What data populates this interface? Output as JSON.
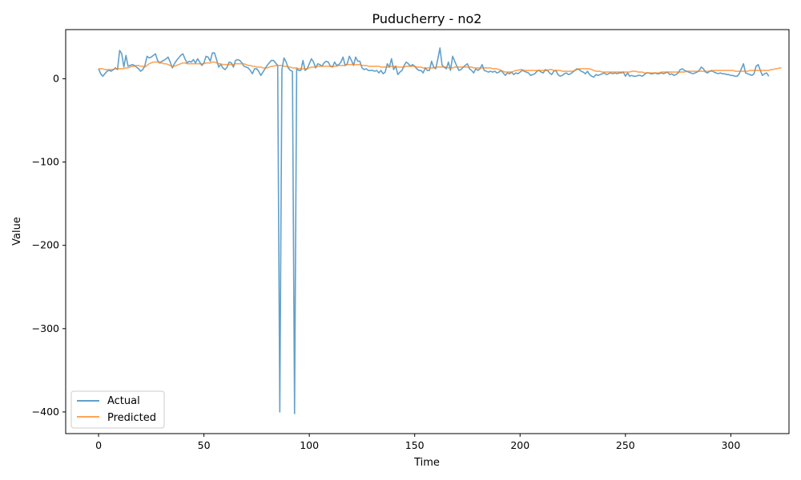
{
  "chart_data": {
    "type": "line",
    "title": "Puducherry - no2",
    "xlabel": "Time",
    "ylabel": "Value",
    "xlim": [
      -15.6,
      327.6
    ],
    "ylim": [
      -426,
      59
    ],
    "xticks": [
      0,
      50,
      100,
      150,
      200,
      250,
      300
    ],
    "yticks": [
      0,
      -100,
      -200,
      -300,
      -400
    ],
    "legend": {
      "position": "lower-left"
    },
    "grid": false,
    "series": [
      {
        "name": "Actual",
        "color": "#1f77b4",
        "values": [
          12,
          6,
          3,
          6,
          9,
          10,
          9,
          11,
          13,
          11,
          34,
          30,
          14,
          28,
          15,
          16,
          17,
          16,
          14,
          12,
          9,
          11,
          16,
          27,
          25,
          26,
          28,
          30,
          22,
          19,
          21,
          22,
          24,
          26,
          20,
          13,
          18,
          22,
          25,
          28,
          30,
          24,
          19,
          21,
          20,
          23,
          19,
          24,
          20,
          16,
          19,
          27,
          26,
          21,
          31,
          31,
          23,
          14,
          17,
          13,
          11,
          14,
          20,
          19,
          14,
          22,
          23,
          22,
          19,
          15,
          14,
          13,
          10,
          6,
          12,
          12,
          9,
          4,
          8,
          12,
          16,
          19,
          22,
          22,
          19,
          16,
          -400,
          11,
          25,
          20,
          13,
          10,
          9,
          -402,
          12,
          10,
          10,
          22,
          10,
          12,
          18,
          24,
          20,
          13,
          18,
          17,
          15,
          19,
          21,
          20,
          15,
          14,
          20,
          16,
          17,
          20,
          26,
          16,
          18,
          27,
          22,
          16,
          26,
          21,
          21,
          13,
          11,
          12,
          10,
          10,
          10,
          9,
          10,
          7,
          10,
          6,
          8,
          18,
          14,
          24,
          11,
          15,
          5,
          8,
          10,
          16,
          20,
          18,
          15,
          17,
          15,
          12,
          10,
          10,
          7,
          13,
          10,
          10,
          21,
          14,
          12,
          24,
          37,
          16,
          14,
          12,
          20,
          10,
          27,
          21,
          15,
          10,
          11,
          14,
          16,
          18,
          12,
          10,
          7,
          12,
          10,
          12,
          17,
          10,
          9,
          8,
          9,
          8,
          9,
          7,
          8,
          10,
          7,
          4,
          7,
          6,
          8,
          5,
          7,
          6,
          8,
          10,
          9,
          8,
          7,
          4,
          5,
          6,
          9,
          10,
          8,
          7,
          11,
          10,
          7,
          5,
          9,
          10,
          5,
          3,
          4,
          6,
          7,
          5,
          6,
          8,
          10,
          12,
          11,
          9,
          8,
          6,
          9,
          5,
          3,
          2,
          5,
          4,
          5,
          6,
          7,
          5,
          6,
          7,
          6,
          7,
          6,
          7,
          7,
          8,
          3,
          7,
          3,
          4,
          3,
          3,
          4,
          4,
          3,
          5,
          7,
          7,
          6,
          6,
          7,
          6,
          6,
          7,
          6,
          7,
          8,
          5,
          6,
          4,
          5,
          7,
          11,
          12,
          10,
          9,
          8,
          7,
          6,
          7,
          8,
          10,
          14,
          12,
          8,
          7,
          9,
          10,
          8,
          7,
          6,
          7,
          6,
          6,
          5,
          5,
          4,
          4,
          3,
          3,
          6,
          12,
          18,
          7,
          6,
          5,
          4,
          6,
          15,
          17,
          10,
          4,
          6,
          7,
          3
        ]
      },
      {
        "name": "Predicted",
        "color": "#ff7f0e",
        "values": [
          12,
          12,
          12,
          11,
          11,
          11,
          11,
          11,
          12,
          12,
          12,
          12,
          12,
          13,
          13,
          14,
          15,
          15,
          16,
          16,
          15,
          15,
          14,
          16,
          18,
          19,
          20,
          20,
          20,
          19,
          19,
          18,
          18,
          17,
          16,
          15,
          15,
          16,
          17,
          18,
          19,
          19,
          18,
          18,
          18,
          18,
          18,
          18,
          18,
          18,
          18,
          19,
          19,
          19,
          20,
          20,
          19,
          18,
          18,
          17,
          17,
          17,
          17,
          17,
          17,
          18,
          18,
          18,
          18,
          18,
          17,
          16,
          16,
          15,
          15,
          14,
          14,
          14,
          13,
          13,
          13,
          14,
          15,
          15,
          16,
          16,
          16,
          16,
          15,
          15,
          14,
          14,
          13,
          13,
          13,
          12,
          12,
          12,
          12,
          12,
          13,
          14,
          14,
          14,
          15,
          15,
          15,
          15,
          15,
          15,
          15,
          15,
          15,
          15,
          16,
          16,
          16,
          16,
          17,
          17,
          17,
          17,
          17,
          17,
          17,
          16,
          16,
          16,
          15,
          15,
          15,
          15,
          15,
          15,
          14,
          14,
          14,
          14,
          14,
          15,
          15,
          15,
          14,
          14,
          14,
          14,
          15,
          15,
          15,
          15,
          15,
          14,
          14,
          14,
          13,
          13,
          13,
          13,
          13,
          13,
          14,
          14,
          14,
          14,
          14,
          14,
          13,
          13,
          13,
          14,
          14,
          14,
          14,
          14,
          14,
          14,
          14,
          14,
          13,
          13,
          13,
          13,
          13,
          13,
          13,
          13,
          13,
          12,
          12,
          12,
          11,
          10,
          9,
          8,
          8,
          8,
          8,
          9,
          10,
          10,
          11,
          11,
          10,
          10,
          10,
          10,
          10,
          10,
          10,
          10,
          10,
          10,
          10,
          10,
          11,
          11,
          10,
          10,
          10,
          10,
          9,
          9,
          9,
          9,
          9,
          9,
          10,
          11,
          12,
          12,
          12,
          12,
          12,
          12,
          11,
          10,
          9,
          9,
          9,
          8,
          8,
          8,
          8,
          8,
          8,
          8,
          8,
          8,
          8,
          8,
          8,
          8,
          8,
          9,
          9,
          9,
          8,
          8,
          8,
          7,
          7,
          7,
          7,
          7,
          7,
          7,
          7,
          8,
          8,
          8,
          8,
          8,
          8,
          8,
          8,
          8,
          8,
          8,
          8,
          9,
          9,
          9,
          9,
          9,
          9,
          9,
          9,
          9,
          9,
          9,
          9,
          9,
          10,
          10,
          10,
          10,
          10,
          10,
          10,
          10,
          10,
          10,
          9,
          9,
          9,
          9,
          9,
          9,
          9,
          10,
          10,
          10,
          10,
          10,
          10,
          10,
          10,
          10,
          10,
          11,
          11,
          12,
          12,
          13,
          13
        ]
      }
    ]
  }
}
